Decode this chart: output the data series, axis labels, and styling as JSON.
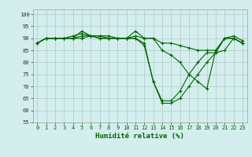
{
  "title": "",
  "xlabel": "Humidité relative (%)",
  "ylabel": "",
  "background_color": "#d4eeee",
  "grid_color": "#b0c8c8",
  "line_color": "#006600",
  "xlim": [
    -0.5,
    23.5
  ],
  "ylim": [
    55,
    102
  ],
  "yticks": [
    55,
    60,
    65,
    70,
    75,
    80,
    85,
    90,
    95,
    100
  ],
  "xticks": [
    0,
    1,
    2,
    3,
    4,
    5,
    6,
    7,
    8,
    9,
    10,
    11,
    12,
    13,
    14,
    15,
    16,
    17,
    18,
    19,
    20,
    21,
    22,
    23
  ],
  "line1": [
    88,
    90,
    90,
    90,
    91,
    92,
    91,
    91,
    91,
    90,
    90,
    91,
    90,
    90,
    88,
    88,
    87,
    86,
    85,
    85,
    85,
    90,
    90,
    88
  ],
  "line2": [
    88,
    90,
    90,
    90,
    90,
    93,
    91,
    91,
    90,
    90,
    90,
    93,
    90,
    90,
    85,
    83,
    80,
    75,
    72,
    69,
    85,
    90,
    91,
    89
  ],
  "line3": [
    88,
    90,
    90,
    90,
    90,
    91,
    91,
    90,
    90,
    90,
    90,
    90,
    88,
    72,
    64,
    64,
    68,
    75,
    80,
    84,
    84,
    85,
    90,
    88
  ],
  "line4": [
    88,
    90,
    90,
    90,
    90,
    90,
    91,
    90,
    90,
    90,
    90,
    90,
    87,
    72,
    63,
    63,
    65,
    70,
    75,
    80,
    84,
    90,
    90,
    88
  ],
  "tick_fontsize": 5,
  "xlabel_fontsize": 6.5,
  "marker_size": 3,
  "linewidth": 0.8
}
